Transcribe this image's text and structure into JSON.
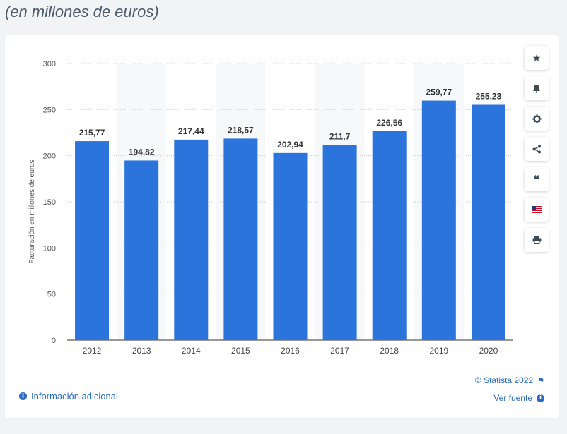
{
  "header": {
    "subtitle": "(en millones de euros)"
  },
  "chart_data": {
    "type": "bar",
    "categories": [
      "2012",
      "2013",
      "2014",
      "2015",
      "2016",
      "2017",
      "2018",
      "2019",
      "2020"
    ],
    "values": [
      215.77,
      194.82,
      217.44,
      218.57,
      202.94,
      211.7,
      226.56,
      259.77,
      255.23
    ],
    "value_labels": [
      "215,77",
      "194,82",
      "217,44",
      "218,57",
      "202,94",
      "211,7",
      "226,56",
      "259,77",
      "255,23"
    ],
    "ylabel": "Facturación en millones de euros",
    "ylim": [
      0,
      300
    ],
    "yticks": [
      0,
      50,
      100,
      150,
      200,
      250,
      300
    ],
    "bar_color": "#2b74dc",
    "grid": true
  },
  "toolbar": {
    "items": [
      {
        "name": "star-icon",
        "glyph": "★"
      },
      {
        "name": "bell-icon",
        "glyph": "bell"
      },
      {
        "name": "gear-icon",
        "glyph": "gear"
      },
      {
        "name": "share-icon",
        "glyph": "share"
      },
      {
        "name": "quote-icon",
        "glyph": "❝"
      },
      {
        "name": "flag-icon",
        "glyph": "flag"
      },
      {
        "name": "print-icon",
        "glyph": "print"
      }
    ]
  },
  "footer": {
    "info_label": "Información adicional",
    "copyright": "© Statista 2022",
    "source_label": "Ver fuente"
  },
  "colors": {
    "accent": "#2a6bbf",
    "bar": "#2b74dc"
  }
}
